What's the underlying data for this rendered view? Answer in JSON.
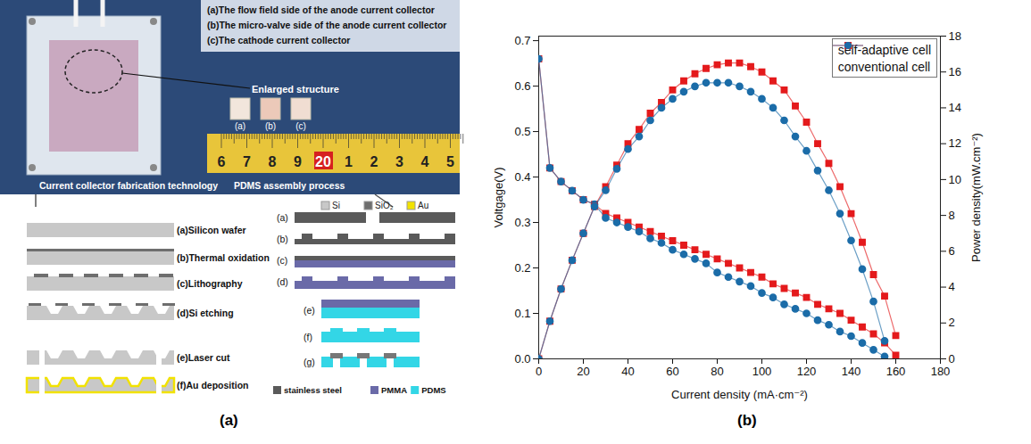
{
  "figure_a": {
    "panel_label": "(a)",
    "photo": {
      "legend_lines": [
        "(a)The flow field side of the anode current collector",
        "(b)The micro-valve side of the anode current collector",
        "(c)The cathode current collector"
      ],
      "callout": "Enlarged structure",
      "part_labels": [
        "(a)",
        "(b)",
        "(c)"
      ],
      "ruler": [
        "6",
        "7",
        "8",
        "9",
        "20",
        "1",
        "2",
        "3",
        "4",
        "5"
      ]
    },
    "fabrication": {
      "title": "Current collector fabrication technology",
      "materials": [
        {
          "name": "Si",
          "color": "#c8c8c8"
        },
        {
          "name": "SiO₂",
          "color": "#6e6e6e"
        },
        {
          "name": "Au",
          "color": "#f2e200"
        }
      ],
      "steps": [
        "(a)Silicon wafer",
        "(b)Thermal oxidation",
        "(c)Lithography",
        "(d)Si etching",
        "(e)Laser cut",
        "(f)Au deposition"
      ]
    },
    "assembly": {
      "title": "PDMS assembly process",
      "steps": [
        "(a)",
        "(b)",
        "(c)",
        "(d)",
        "(e)",
        "(f)",
        "(g)"
      ],
      "materials": [
        {
          "name": "stainless steel",
          "color": "#5a5a5a"
        },
        {
          "name": "PMMA",
          "color": "#6a6aa8"
        },
        {
          "name": "PDMS",
          "color": "#33d6e6"
        }
      ]
    }
  },
  "chart_data": {
    "type": "line",
    "panel_label": "(b)",
    "x_label": "Current density (mA·cm⁻²)",
    "y_label": "Voltgage(V)",
    "y2_label": "Power density(mW.cm⁻²)",
    "x": [
      0,
      5,
      10,
      15,
      20,
      25,
      30,
      35,
      40,
      45,
      50,
      55,
      60,
      65,
      70,
      75,
      80,
      85,
      90,
      95,
      100,
      105,
      110,
      115,
      120,
      125,
      130,
      135,
      140,
      145,
      150,
      155,
      160
    ],
    "xlim": [
      0,
      180
    ],
    "xticks": [
      0,
      20,
      40,
      60,
      80,
      100,
      120,
      140,
      160,
      180
    ],
    "ylim": [
      0,
      0.71
    ],
    "yticks": [
      {
        "value": 0,
        "label": "0.0"
      },
      0.1,
      0.2,
      0.3,
      0.4,
      0.5,
      0.6,
      0.7
    ],
    "y2lim": [
      0,
      18
    ],
    "y2ticks": [
      0,
      2,
      4,
      6,
      8,
      10,
      12,
      14,
      16,
      18
    ],
    "legend": "upper right",
    "grid": false,
    "series": [
      {
        "name": "self-adaptive cell",
        "color": "#e41a1c",
        "marker": "square",
        "line_style": "solid",
        "values": [
          0.66,
          0.42,
          0.39,
          0.37,
          0.35,
          0.34,
          0.32,
          0.31,
          0.3,
          0.29,
          0.28,
          0.27,
          0.26,
          0.25,
          0.24,
          0.23,
          0.22,
          0.21,
          0.2,
          0.19,
          0.18,
          0.165,
          0.155,
          0.145,
          0.135,
          0.12,
          0.11,
          0.1,
          0.085,
          0.07,
          0.055,
          0.035,
          0.008
        ]
      },
      {
        "name": "conventional cell",
        "color": "#1b6ca8",
        "marker": "circle",
        "line_style": "solid",
        "values": [
          0.66,
          0.42,
          0.39,
          0.37,
          0.35,
          0.34,
          0.31,
          0.3,
          0.29,
          0.28,
          0.265,
          0.255,
          0.24,
          0.23,
          0.22,
          0.21,
          0.19,
          0.18,
          0.17,
          0.16,
          0.145,
          0.135,
          0.12,
          0.11,
          0.1,
          0.085,
          0.075,
          0.06,
          0.05,
          0.035,
          0.02,
          0.005,
          null
        ]
      },
      {
        "name": "self-adaptive cell",
        "color": "#e41a1c",
        "marker": "square",
        "line_style": "solid",
        "axis": "y2",
        "values": [
          0,
          2.1,
          3.9,
          5.5,
          7.0,
          8.5,
          9.6,
          10.8,
          12.0,
          12.8,
          13.7,
          14.3,
          15.0,
          15.5,
          15.9,
          16.2,
          16.4,
          16.5,
          16.5,
          16.3,
          16.0,
          15.5,
          15.0,
          14.1,
          13.2,
          12.0,
          10.9,
          9.6,
          8.1,
          6.5,
          4.7,
          3.5,
          1.3
        ]
      },
      {
        "name": "conventional cell",
        "color": "#1b6ca8",
        "marker": "circle",
        "line_style": "solid",
        "axis": "y2",
        "values": [
          0,
          2.1,
          3.9,
          5.5,
          7.0,
          8.5,
          9.4,
          10.6,
          11.7,
          12.4,
          13.3,
          14.0,
          14.5,
          14.9,
          15.2,
          15.4,
          15.4,
          15.4,
          15.2,
          14.9,
          14.5,
          14.0,
          13.3,
          12.4,
          11.6,
          10.5,
          9.4,
          8.1,
          6.6,
          5.0,
          3.2,
          1.0,
          null
        ]
      }
    ]
  }
}
